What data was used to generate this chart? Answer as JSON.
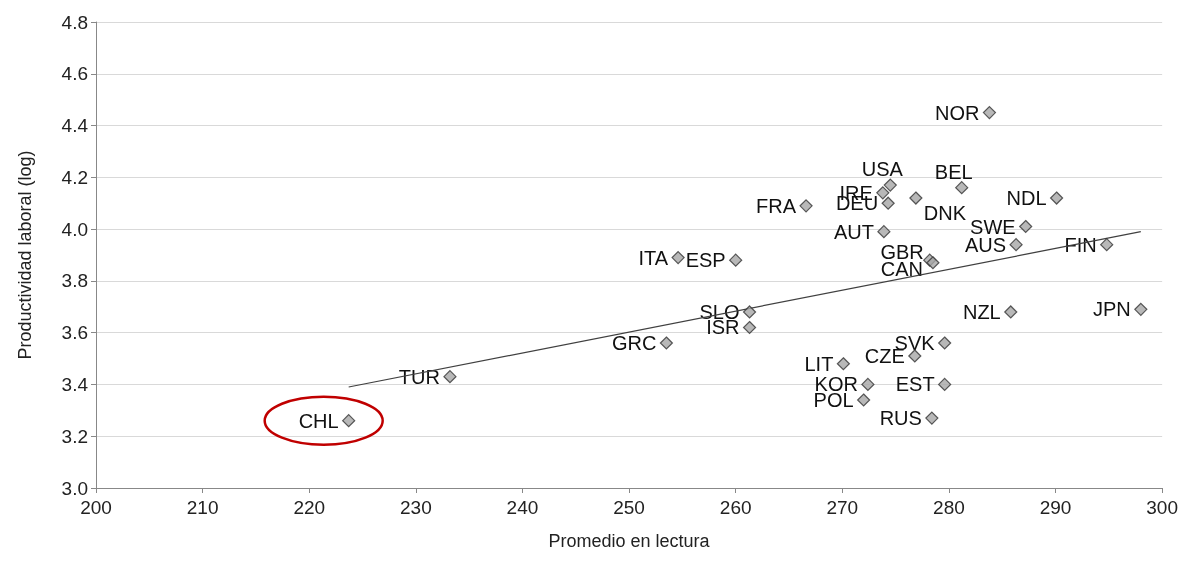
{
  "chart_data": {
    "type": "scatter",
    "xlabel": "Promedio en lectura",
    "ylabel": "Productividad laboral (log)",
    "xlim": [
      200,
      300
    ],
    "xticks": [
      200,
      210,
      220,
      230,
      240,
      250,
      260,
      270,
      280,
      290,
      300
    ],
    "ylim": [
      3.0,
      4.8
    ],
    "yticks": [
      {
        "value": 3.0,
        "label": "3.0"
      },
      {
        "value": 3.2,
        "label": "3.2"
      },
      {
        "value": 3.4,
        "label": "3.4"
      },
      {
        "value": 3.6,
        "label": "3.6"
      },
      {
        "value": 3.8,
        "label": "3.8"
      },
      {
        "value": 4.0,
        "label": "4.0"
      },
      {
        "value": 4.2,
        "label": "4.2"
      },
      {
        "value": 4.4,
        "label": "4.4"
      },
      {
        "value": 4.6,
        "label": "4.6"
      },
      {
        "value": 4.8,
        "label": "4.8"
      }
    ],
    "grid": "y",
    "marker": "diamond",
    "series": [
      {
        "color": "#a6a6a6",
        "x": [
          223.7,
          233.2,
          253.5,
          254.6,
          260.0,
          261.3,
          261.3,
          266.6,
          270.1,
          272.4,
          272.0,
          276.8,
          279.6,
          278.4,
          279.6,
          273.9,
          274.3,
          273.8,
          274.5,
          276.9,
          278.2,
          278.5,
          281.2,
          283.8,
          290.1,
          287.2,
          286.3,
          294.8,
          285.8,
          298.0
        ],
        "values": [
          3.26,
          3.43,
          3.56,
          3.89,
          3.88,
          3.68,
          3.62,
          4.09,
          3.48,
          3.4,
          3.34,
          3.51,
          3.4,
          3.27,
          3.56,
          3.99,
          4.1,
          4.14,
          4.17,
          4.12,
          3.88,
          3.87,
          4.16,
          4.45,
          4.12,
          4.01,
          3.94,
          3.94,
          3.68,
          3.69
        ]
      },
      {
        "type": "line",
        "marker": "none",
        "color": "#404040",
        "line_style": "solid",
        "x": [
          223.7,
          298.0
        ],
        "values": [
          3.39,
          3.99
        ]
      }
    ],
    "annotations": [
      {
        "text": "CHL",
        "x": 223.7,
        "y": 3.26
      },
      {
        "text": "TUR",
        "x": 233.2,
        "y": 3.43
      },
      {
        "text": "GRC",
        "x": 253.5,
        "y": 3.56
      },
      {
        "text": "ITA",
        "x": 254.6,
        "y": 3.89
      },
      {
        "text": "ESP",
        "x": 260.0,
        "y": 3.88
      },
      {
        "text": "SLO",
        "x": 261.3,
        "y": 3.68
      },
      {
        "text": "ISR",
        "x": 261.3,
        "y": 3.62
      },
      {
        "text": "FRA",
        "x": 266.6,
        "y": 4.09
      },
      {
        "text": "LIT",
        "x": 270.1,
        "y": 3.48
      },
      {
        "text": "KOR",
        "x": 272.4,
        "y": 3.4
      },
      {
        "text": "POL",
        "x": 272.0,
        "y": 3.34
      },
      {
        "text": "CZE",
        "x": 276.8,
        "y": 3.51
      },
      {
        "text": "EST",
        "x": 279.6,
        "y": 3.4
      },
      {
        "text": "RUS",
        "x": 278.4,
        "y": 3.27
      },
      {
        "text": "SVK",
        "x": 279.6,
        "y": 3.56
      },
      {
        "text": "AUT",
        "x": 273.9,
        "y": 3.99
      },
      {
        "text": "DEU",
        "x": 274.3,
        "y": 4.1
      },
      {
        "text": "IRE",
        "x": 273.8,
        "y": 4.14
      },
      {
        "text": "USA",
        "x": 274.5,
        "y": 4.17
      },
      {
        "text": "DNK",
        "x": 276.9,
        "y": 4.12
      },
      {
        "text": "GBR",
        "x": 278.2,
        "y": 3.88
      },
      {
        "text": "CAN",
        "x": 278.5,
        "y": 3.87
      },
      {
        "text": "BEL",
        "x": 281.2,
        "y": 4.16
      },
      {
        "text": "NOR",
        "x": 283.8,
        "y": 4.45
      },
      {
        "text": "NDL",
        "x": 290.1,
        "y": 4.12
      },
      {
        "text": "SWE",
        "x": 287.2,
        "y": 4.01
      },
      {
        "text": "AUS",
        "x": 286.3,
        "y": 3.94
      },
      {
        "text": "FIN",
        "x": 294.8,
        "y": 3.94
      },
      {
        "text": "NZL",
        "x": 285.8,
        "y": 3.68
      },
      {
        "text": "JPN",
        "x": 298.0,
        "y": 3.69
      }
    ]
  }
}
